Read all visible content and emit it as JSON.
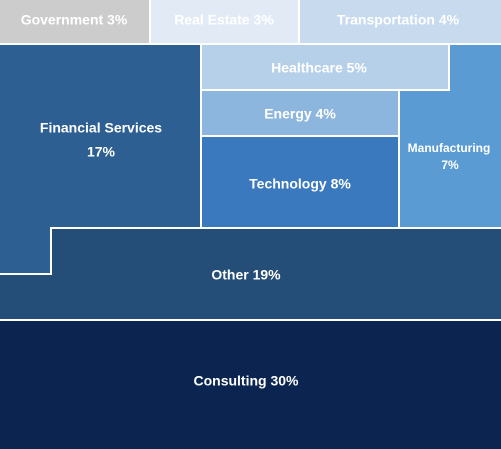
{
  "chart_data": {
    "type": "treemap",
    "title": "",
    "unit": "%",
    "items": [
      {
        "name": "Government",
        "value_label": "3%",
        "value": 3,
        "color": "#cccccc",
        "text_color": "#ffffff"
      },
      {
        "name": "Real Estate",
        "value_label": "3%",
        "value": 3,
        "color": "#e2ebf5",
        "text_color": "#ffffff"
      },
      {
        "name": "Transportation",
        "value_label": "4%",
        "value": 4,
        "color": "#c7daee",
        "text_color": "#ffffff"
      },
      {
        "name": "Financial Services",
        "value_label": "17%",
        "value": 17,
        "color": "#2d5f92",
        "text_color": "#ffffff"
      },
      {
        "name": "Healthcare",
        "value_label": "5%",
        "value": 5,
        "color": "#b7d0ea",
        "text_color": "#ffffff"
      },
      {
        "name": "Energy",
        "value_label": "4%",
        "value": 4,
        "color": "#8db6de",
        "text_color": "#ffffff"
      },
      {
        "name": "Technology",
        "value_label": "8%",
        "value": 8,
        "color": "#3a79bd",
        "text_color": "#ffffff"
      },
      {
        "name": "Manufacturing",
        "value_label": "7%",
        "value": 7,
        "color": "#5b9bd3",
        "text_color": "#ffffff"
      },
      {
        "name": "Other",
        "value_label": "19%",
        "value": 19,
        "color": "#244d77",
        "text_color": "#ffffff"
      },
      {
        "name": "Consulting",
        "value_label": "30%",
        "value": 30,
        "color": "#0c2550",
        "text_color": "#ffffff"
      }
    ]
  }
}
